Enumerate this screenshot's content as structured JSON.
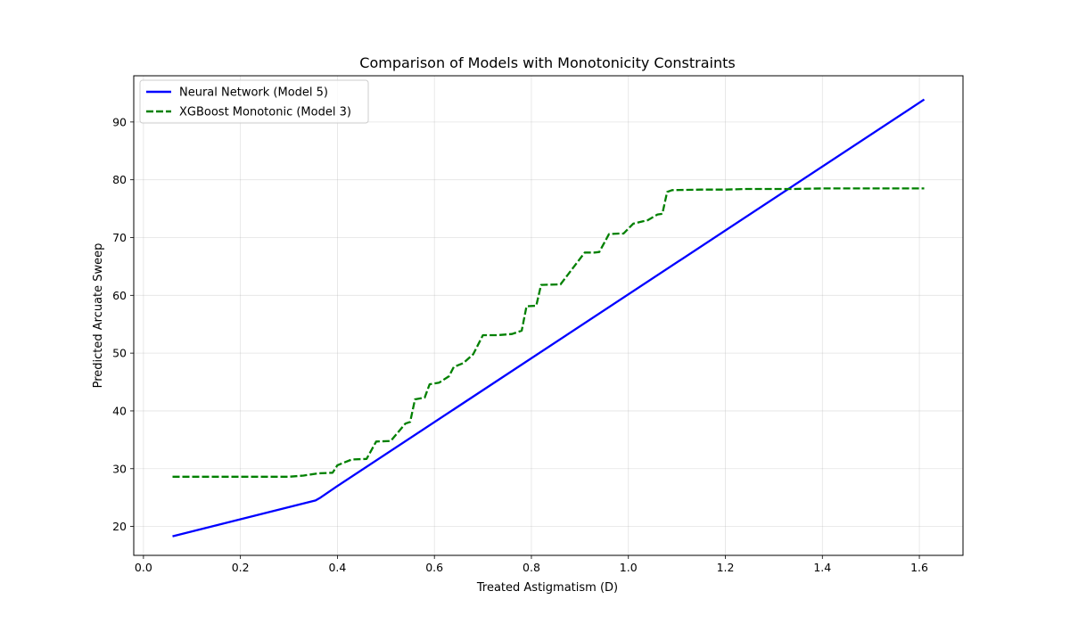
{
  "chart_data": {
    "type": "line",
    "title": "Comparison of Models with Monotonicity Constraints",
    "xlabel": "Treated Astigmatism (D)",
    "ylabel": "Predicted Arcuate Sweep",
    "xlim": [
      -0.02,
      1.69
    ],
    "ylim": [
      15,
      98
    ],
    "xticks": [
      0.0,
      0.2,
      0.4,
      0.6,
      0.8,
      1.0,
      1.2,
      1.4,
      1.6
    ],
    "xtick_labels": [
      "0.0",
      "0.2",
      "0.4",
      "0.6",
      "0.8",
      "1.0",
      "1.2",
      "1.4",
      "1.6"
    ],
    "yticks": [
      20,
      30,
      40,
      50,
      60,
      70,
      80,
      90
    ],
    "ytick_labels": [
      "20",
      "30",
      "40",
      "50",
      "60",
      "70",
      "80",
      "90"
    ],
    "grid": true,
    "legend_position": "top-left",
    "series": [
      {
        "name": "Neural Network (Model 5)",
        "color": "#0000ff",
        "style": "solid",
        "x": [
          0.06,
          0.355,
          0.365,
          0.4,
          1.61
        ],
        "y": [
          18.3,
          24.5,
          25.0,
          27.0,
          93.9
        ]
      },
      {
        "name": "XGBoost Monotonic (Model 3)",
        "color": "#008000",
        "style": "dashed",
        "x": [
          0.06,
          0.3,
          0.33,
          0.36,
          0.39,
          0.4,
          0.43,
          0.46,
          0.48,
          0.51,
          0.54,
          0.55,
          0.56,
          0.58,
          0.59,
          0.61,
          0.63,
          0.64,
          0.66,
          0.68,
          0.7,
          0.73,
          0.76,
          0.78,
          0.79,
          0.81,
          0.82,
          0.86,
          0.89,
          0.91,
          0.93,
          0.94,
          0.96,
          0.98,
          0.99,
          1.01,
          1.03,
          1.04,
          1.06,
          1.07,
          1.08,
          1.09,
          1.15,
          1.2,
          1.24,
          1.34,
          1.4,
          1.61
        ],
        "y": [
          28.6,
          28.6,
          28.8,
          29.2,
          29.3,
          30.6,
          31.6,
          31.7,
          34.7,
          34.8,
          37.8,
          38.1,
          42.0,
          42.3,
          44.6,
          44.9,
          46.0,
          47.6,
          48.3,
          49.8,
          53.1,
          53.1,
          53.3,
          53.9,
          58.1,
          58.2,
          61.8,
          61.9,
          65.2,
          67.4,
          67.4,
          67.5,
          70.6,
          70.7,
          70.7,
          72.4,
          72.8,
          73.0,
          74.0,
          74.1,
          77.9,
          78.2,
          78.3,
          78.3,
          78.4,
          78.4,
          78.5,
          78.5
        ]
      }
    ]
  }
}
